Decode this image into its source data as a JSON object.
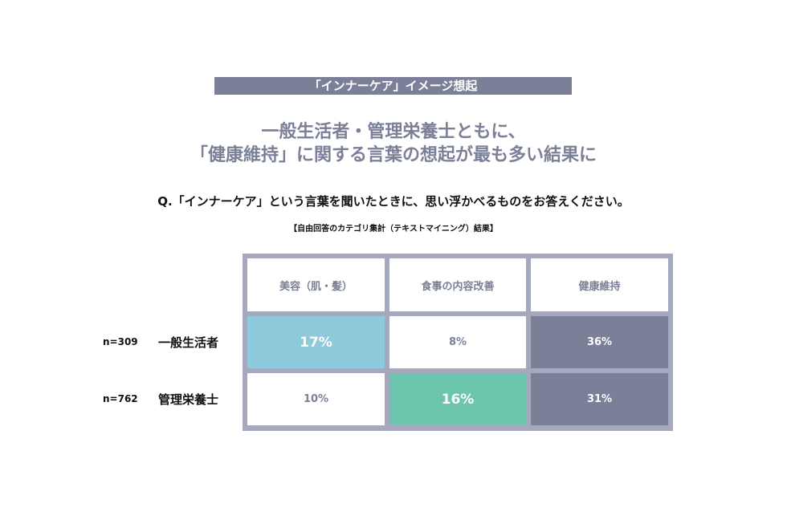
{
  "header": {
    "tag": "「インナーケア」イメージ想起",
    "headline": [
      "一般生活者・管理栄養士ともに、",
      "「健康維持」に関する言葉の想起が最も多い結果に"
    ]
  },
  "question": "Q.「インナーケア」という言葉を聞いたときに、思い浮かべるものをお答えください。",
  "note": "【自由回答のカテゴリ集計（テキストマイニング）結果】",
  "table": {
    "columns": [
      "美容（肌・髪）",
      "食事の内容改善",
      "健康維持"
    ],
    "rows": [
      {
        "n": "n=309",
        "label": "一般生活者",
        "cells": [
          {
            "text": "17%",
            "color": "#8ec9dc",
            "emphasis": true
          },
          {
            "text": "8%",
            "color": "#ffffff",
            "emphasis": false
          },
          {
            "text": "36%",
            "color": "#7b7f97",
            "emphasis": false
          }
        ]
      },
      {
        "n": "n=762",
        "label": "管理栄養士",
        "cells": [
          {
            "text": "10%",
            "color": "#ffffff",
            "emphasis": false
          },
          {
            "text": "16%",
            "color": "#6cc5ad",
            "emphasis": true
          },
          {
            "text": "31%",
            "color": "#7b7f97",
            "emphasis": false
          }
        ]
      }
    ]
  }
}
